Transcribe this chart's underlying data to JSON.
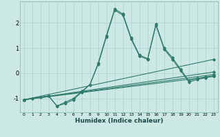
{
  "xlabel": "Humidex (Indice chaleur)",
  "bg_color": "#cce8e5",
  "grid_color": "#b8d8d5",
  "line_color": "#2d7a6a",
  "xlim": [
    -0.5,
    23.5
  ],
  "ylim": [
    -1.55,
    2.85
  ],
  "xticks": [
    0,
    1,
    2,
    3,
    4,
    5,
    6,
    7,
    8,
    9,
    10,
    11,
    12,
    13,
    14,
    15,
    16,
    17,
    18,
    19,
    20,
    21,
    22,
    23
  ],
  "yticks": [
    -1,
    0,
    1,
    2
  ],
  "main_x": [
    0,
    1,
    2,
    3,
    4,
    5,
    6,
    7,
    8,
    9,
    10,
    11,
    12,
    13,
    14,
    15,
    16,
    17,
    18,
    19,
    20,
    21,
    22,
    23
  ],
  "main_y": [
    -1.05,
    -1.0,
    -0.95,
    -0.9,
    -1.3,
    -1.2,
    -1.05,
    -0.75,
    -0.45,
    0.4,
    1.5,
    2.55,
    2.35,
    1.4,
    0.72,
    0.58,
    1.95,
    1.0,
    0.62,
    0.15,
    -0.3,
    -0.2,
    -0.15,
    -0.1
  ],
  "line2_x": [
    0,
    3,
    4,
    5,
    6,
    7,
    8,
    9,
    10,
    11,
    12,
    13,
    14,
    15,
    16,
    17,
    18,
    19,
    20,
    21,
    22,
    23
  ],
  "line2_y": [
    -1.05,
    -0.9,
    -1.3,
    -1.15,
    -1.0,
    -0.72,
    -0.45,
    0.35,
    1.45,
    2.5,
    2.3,
    1.35,
    0.68,
    0.55,
    1.9,
    0.95,
    0.55,
    0.1,
    -0.35,
    -0.25,
    -0.18,
    -0.12
  ],
  "straight_lines": [
    [
      0,
      -1.05,
      23,
      -0.12
    ],
    [
      0,
      -1.05,
      23,
      -0.05
    ],
    [
      0,
      -1.05,
      23,
      0.05
    ],
    [
      0,
      -1.05,
      23,
      0.55
    ]
  ]
}
